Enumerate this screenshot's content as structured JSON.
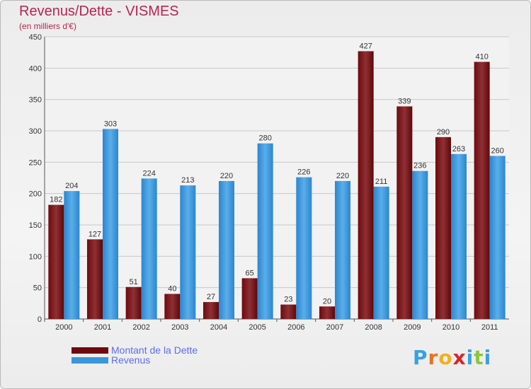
{
  "title": "Revenus/Dette - VISMES",
  "subtitle": "(en milliers d'€)",
  "logo_text": "Proxiti",
  "colors": {
    "dette": "#6e0a0e",
    "dette_light": "#8e3034",
    "revenus": "#2b86cf",
    "revenus_light": "#5aaee9",
    "title": "#b5264f",
    "legend_text": "#5b6de8"
  },
  "legend": [
    {
      "label": "Montant de la Dette",
      "color": "#6e0a0e"
    },
    {
      "label": "Revenus",
      "color": "#3a96dc"
    }
  ],
  "chart_data": {
    "type": "bar",
    "title": "Revenus/Dette - VISMES",
    "subtitle": "(en milliers d'€)",
    "categories": [
      "2000",
      "2001",
      "2002",
      "2003",
      "2004",
      "2005",
      "2006",
      "2007",
      "2008",
      "2009",
      "2010",
      "2011"
    ],
    "series": [
      {
        "name": "Montant de la Dette",
        "values": [
          182,
          127,
          51,
          40,
          27,
          65,
          23,
          20,
          427,
          339,
          290,
          410
        ]
      },
      {
        "name": "Revenus",
        "values": [
          204,
          303,
          224,
          213,
          220,
          280,
          226,
          220,
          211,
          236,
          263,
          260
        ]
      }
    ],
    "ylim": [
      0,
      450
    ],
    "yticks": [
      0,
      50,
      100,
      150,
      200,
      250,
      300,
      350,
      400,
      450
    ],
    "grid": true,
    "legend_position": "bottom-left"
  }
}
